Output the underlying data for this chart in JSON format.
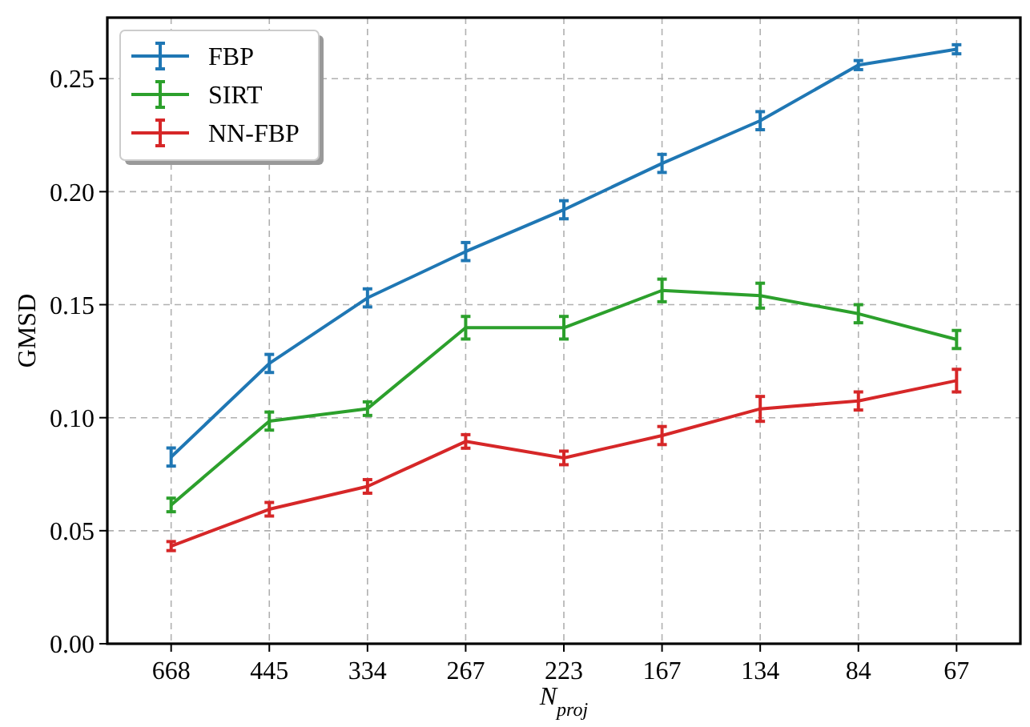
{
  "chart_data": {
    "type": "line",
    "xlabel": "N$_{proj}$",
    "ylabel": "GMSD",
    "categories": [
      "668",
      "445",
      "334",
      "267",
      "223",
      "167",
      "134",
      "84",
      "67"
    ],
    "ylim": [
      0,
      0.277
    ],
    "yticks": [
      {
        "value": 0,
        "label": "0.00"
      },
      {
        "value": 0.05,
        "label": "0.05"
      },
      {
        "value": 0.1,
        "label": "0.10"
      },
      {
        "value": 0.15,
        "label": "0.15"
      },
      {
        "value": 0.2,
        "label": "0.20"
      },
      {
        "value": 0.25,
        "label": "0.25"
      }
    ],
    "grid": true,
    "legend": "top left",
    "marker": "none",
    "line_style": "solid",
    "series": [
      {
        "name": "FBP",
        "color": "#1f77b4",
        "values": [
          0.0826,
          0.124,
          0.153,
          0.1735,
          0.192,
          0.2125,
          0.2314,
          0.256,
          0.263
        ],
        "errors": [
          0.004,
          0.004,
          0.004,
          0.004,
          0.004,
          0.004,
          0.004,
          0.002,
          0.002
        ]
      },
      {
        "name": "SIRT",
        "color": "#2ca02c",
        "values": [
          0.0614,
          0.0985,
          0.104,
          0.1398,
          0.1398,
          0.1563,
          0.154,
          0.146,
          0.1346
        ],
        "errors": [
          0.003,
          0.004,
          0.003,
          0.005,
          0.005,
          0.005,
          0.0055,
          0.004,
          0.004
        ]
      },
      {
        "name": "NN-FBP",
        "color": "#d62728",
        "values": [
          0.0432,
          0.0595,
          0.0696,
          0.0895,
          0.0822,
          0.0921,
          0.1039,
          0.1074,
          0.1164
        ],
        "errors": [
          0.002,
          0.003,
          0.003,
          0.003,
          0.003,
          0.004,
          0.0055,
          0.004,
          0.005
        ]
      }
    ]
  }
}
